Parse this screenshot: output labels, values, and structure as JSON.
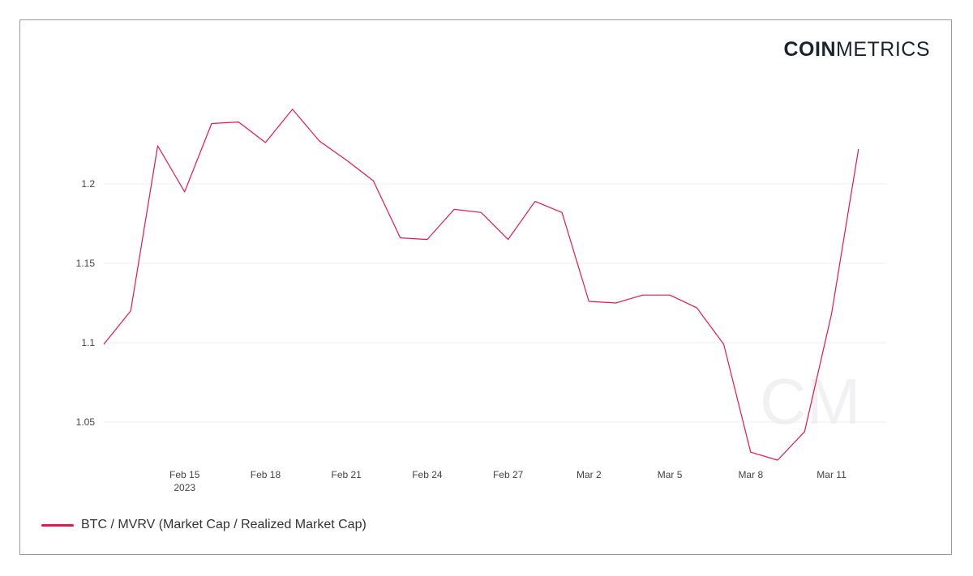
{
  "brand": {
    "bold": "COIN",
    "light": "METRICS",
    "watermark": "CM"
  },
  "legend": {
    "label": "BTC / MVRV (Market Cap / Realized Market Cap)"
  },
  "colors": {
    "series": "#e8174a",
    "grid": "#ececec",
    "border": "#9a9a9a"
  },
  "chart_data": {
    "type": "line",
    "title": "",
    "xlabel": "",
    "ylabel": "",
    "ylim": [
      1.025,
      1.25
    ],
    "xlim": [
      "2023-02-12",
      "2023-03-13"
    ],
    "grid": true,
    "legend_position": "bottom-left",
    "y_ticks": [
      1.05,
      1.1,
      1.15,
      1.2
    ],
    "y_tick_labels": [
      "1.05",
      "1.1",
      "1.15",
      "1.2"
    ],
    "x_ticks": [
      {
        "date": "2023-02-15",
        "label": "Feb 15",
        "sublabel": "2023"
      },
      {
        "date": "2023-02-18",
        "label": "Feb 18"
      },
      {
        "date": "2023-02-21",
        "label": "Feb 21"
      },
      {
        "date": "2023-02-24",
        "label": "Feb 24"
      },
      {
        "date": "2023-02-27",
        "label": "Feb 27"
      },
      {
        "date": "2023-03-02",
        "label": "Mar 2"
      },
      {
        "date": "2023-03-05",
        "label": "Mar 5"
      },
      {
        "date": "2023-03-08",
        "label": "Mar 8"
      },
      {
        "date": "2023-03-11",
        "label": "Mar 11"
      }
    ],
    "series": [
      {
        "name": "BTC / MVRV (Market Cap / Realized Market Cap)",
        "x": [
          "2023-02-12",
          "2023-02-13",
          "2023-02-14",
          "2023-02-15",
          "2023-02-16",
          "2023-02-17",
          "2023-02-18",
          "2023-02-19",
          "2023-02-20",
          "2023-02-21",
          "2023-02-22",
          "2023-02-23",
          "2023-02-24",
          "2023-02-25",
          "2023-02-26",
          "2023-02-27",
          "2023-02-28",
          "2023-03-01",
          "2023-03-02",
          "2023-03-03",
          "2023-03-04",
          "2023-03-05",
          "2023-03-06",
          "2023-03-07",
          "2023-03-08",
          "2023-03-09",
          "2023-03-10",
          "2023-03-11",
          "2023-03-12",
          "2023-03-13"
        ],
        "y": [
          1.099,
          1.12,
          1.224,
          1.195,
          1.238,
          1.239,
          1.226,
          1.247,
          1.227,
          1.215,
          1.202,
          1.166,
          1.165,
          1.184,
          1.182,
          1.165,
          1.189,
          1.182,
          1.126,
          1.125,
          1.13,
          1.13,
          1.122,
          1.099,
          1.031,
          1.026,
          1.044,
          1.118,
          1.222,
          null
        ]
      }
    ]
  }
}
